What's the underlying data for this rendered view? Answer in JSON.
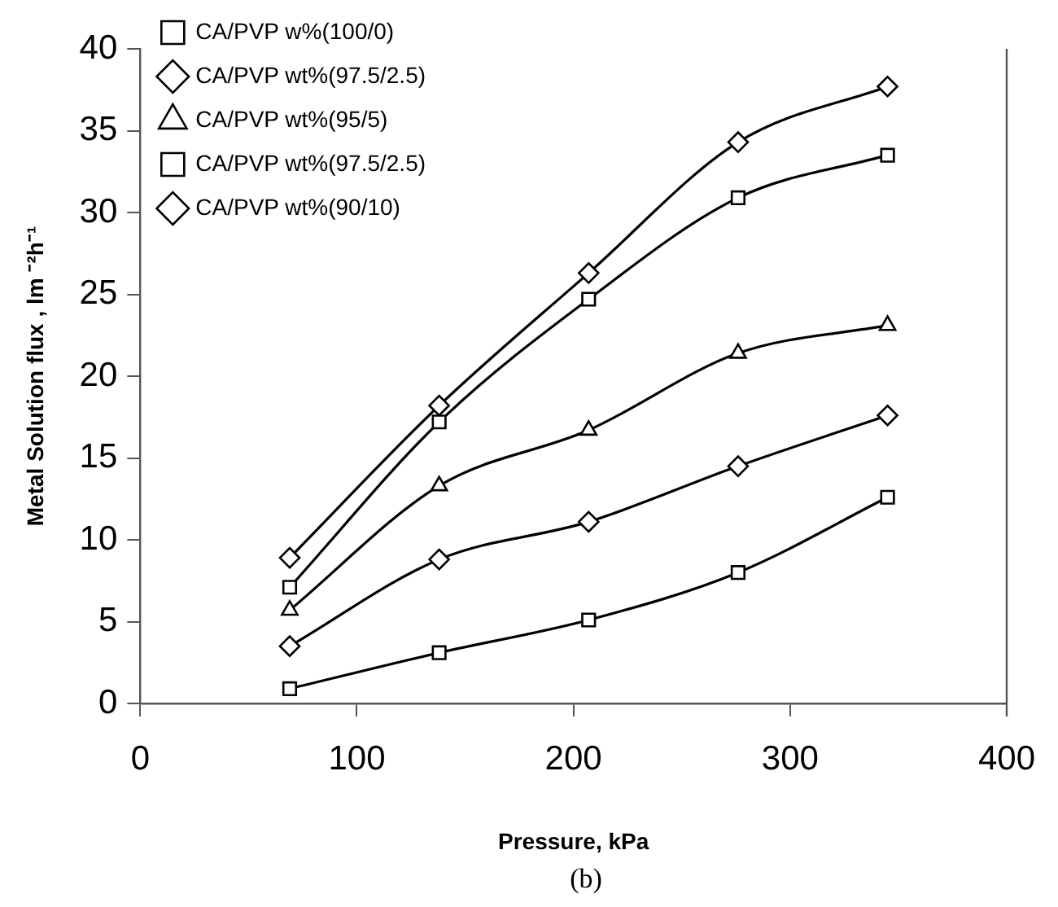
{
  "chart_data": {
    "type": "line",
    "xlabel": "Pressure, kPa",
    "ylabel": "Metal Solution flux , lm ⁻²h⁻¹",
    "annotations": [
      "(b)"
    ],
    "x": [
      69,
      138,
      207,
      276,
      345
    ],
    "series": [
      {
        "name": "CA/PVP w%(100/0)",
        "color": "#000000",
        "marker": "square",
        "values": [
          0.9,
          3.1,
          5.1,
          8.0,
          12.6
        ]
      },
      {
        "name": "CA/PVP wt%(97.5/2.5)",
        "color": "#000000",
        "marker": "diamond",
        "values": [
          3.5,
          8.8,
          11.1,
          14.5,
          17.6
        ]
      },
      {
        "name": "CA/PVP wt%(95/5)",
        "color": "#000000",
        "marker": "triangle",
        "values": [
          5.7,
          13.3,
          16.7,
          21.4,
          23.1
        ]
      },
      {
        "name": "CA/PVP wt%(97.5/2.5)",
        "color": "#000000",
        "marker": "square",
        "values": [
          7.1,
          17.2,
          24.7,
          30.9,
          33.5
        ]
      },
      {
        "name": "CA/PVP wt%(90/10)",
        "color": "#000000",
        "marker": "diamond",
        "values": [
          8.9,
          18.2,
          26.3,
          34.3,
          37.7
        ]
      }
    ],
    "xlim": [
      0,
      400
    ],
    "xticks": [
      0,
      100,
      200,
      300,
      400
    ],
    "ylim": [
      0,
      40
    ],
    "yticks": [
      0,
      5,
      10,
      15,
      20,
      25,
      30,
      35,
      40
    ],
    "grid": false,
    "legend": "top left",
    "line_style": "solid"
  }
}
